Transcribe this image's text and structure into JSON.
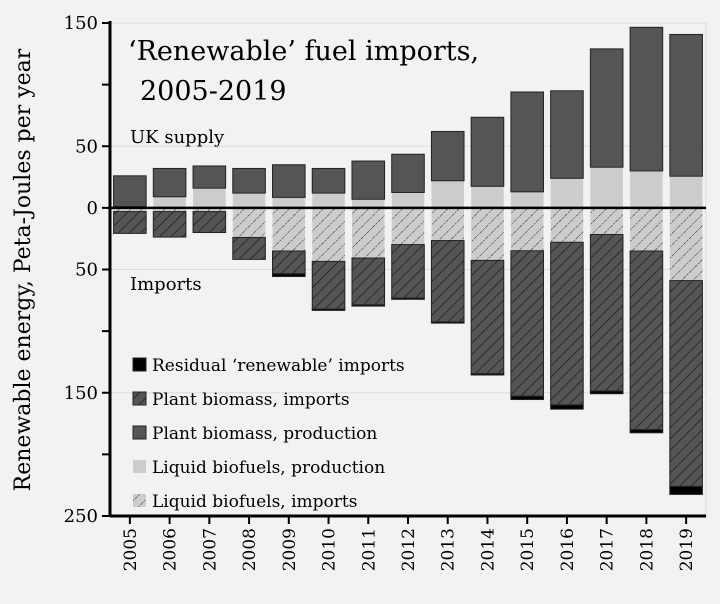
{
  "chart_data": {
    "type": "bar",
    "stacked": true,
    "title": "‘Renewable’ fuel imports,",
    "subtitle": "2005-2019",
    "ylabel": "Renewable energy, Peta-Joules per year",
    "xlabel": "",
    "ylim": [
      -250,
      150
    ],
    "y_ticks": [
      150,
      100,
      50,
      0,
      -50,
      -100,
      -150,
      -200,
      -250
    ],
    "y_tick_labels": [
      {
        "value": 150,
        "label": "150"
      },
      {
        "value": 50,
        "label": "50"
      },
      {
        "value": 0,
        "label": "0"
      },
      {
        "value": -50,
        "label": "50"
      },
      {
        "value": -150,
        "label": "150"
      },
      {
        "value": -250,
        "label": "250"
      }
    ],
    "grid": true,
    "legend_position": "bottom-left",
    "annotations": {
      "supply": "UK supply",
      "imports": "Imports"
    },
    "categories": [
      "2005",
      "2006",
      "2007",
      "2008",
      "2009",
      "2010",
      "2011",
      "2012",
      "2013",
      "2014",
      "2015",
      "2016",
      "2017",
      "2018",
      "2019"
    ],
    "series": [
      {
        "name": "Liquid biofuels, production",
        "key": "liq_prod",
        "color": "#cccccc",
        "hatch": false,
        "values": [
          1,
          9,
          16,
          12,
          8.5,
          12,
          7,
          12.5,
          22,
          17.5,
          13,
          24,
          33,
          30,
          25.7
        ]
      },
      {
        "name": "Plant biomass, production",
        "key": "bio_prod",
        "color": "#555555",
        "hatch": false,
        "values": [
          25,
          23,
          18,
          20,
          26.5,
          20,
          31,
          31,
          40,
          56,
          81,
          71,
          96,
          116.5,
          115
        ]
      },
      {
        "name": "Liquid biofuels, imports",
        "key": "liq_imp",
        "color": "#cccccc",
        "hatch": true,
        "values": [
          -3,
          -3,
          -3,
          -24,
          -35,
          -43.4,
          -40.7,
          -29.8,
          -26.5,
          -42.6,
          -34.8,
          -27.9,
          -21.6,
          -35,
          -59
        ]
      },
      {
        "name": "Plant biomass, imports",
        "key": "bio_imp",
        "color": "#555555",
        "hatch": true,
        "values": [
          -17.7,
          -20.7,
          -17,
          -17.8,
          -18.5,
          -38.8,
          -38,
          -43.4,
          -66,
          -92,
          -118,
          -132,
          -127,
          -145,
          -167
        ]
      },
      {
        "name": "Residual ‘renewable’ imports",
        "key": "residual",
        "color": "#000000",
        "hatch": false,
        "values": [
          0,
          0,
          0,
          0,
          -2.2,
          -1,
          -1,
          -1,
          -1,
          -1,
          -2.7,
          -3.4,
          -2.2,
          -2.5,
          -6.5
        ]
      }
    ],
    "legend_order": [
      "residual",
      "bio_imp",
      "bio_prod",
      "liq_prod",
      "liq_imp"
    ]
  }
}
